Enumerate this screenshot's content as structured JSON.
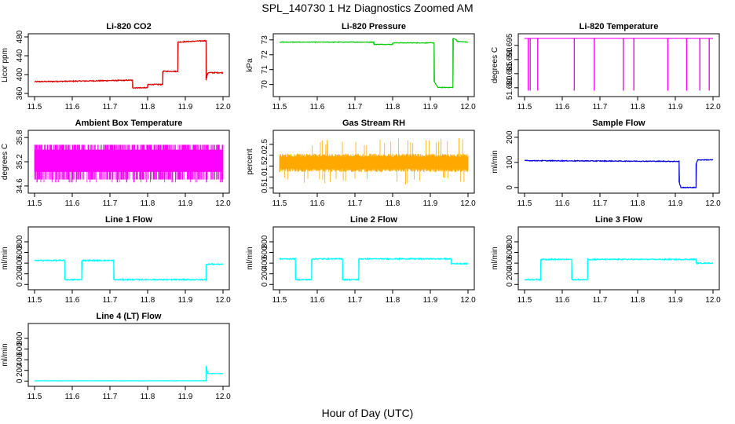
{
  "title": "SPL_140730  1 Hz Diagnostics Zoomed AM",
  "xlabel": "Hour of Day (UTC)",
  "colors": {
    "red": "#dd0000",
    "green": "#00cc00",
    "magenta": "#ff00ff",
    "orange": "#ffaa00",
    "blue": "#0000dd",
    "cyan": "#00ffff"
  },
  "chart_data": [
    {
      "type": "line",
      "title": "Li-820 CO2",
      "ylabel": "Licor ppm",
      "color": "red",
      "xlim": [
        11.5,
        12.0
      ],
      "ylim": [
        360,
        480
      ],
      "x_ticks": [
        "11.5",
        "11.6",
        "11.7",
        "11.8",
        "11.9",
        "12.0"
      ],
      "y_ticks": [
        {
          "v": 360,
          "t": "360"
        },
        {
          "v": 400,
          "t": "400"
        },
        {
          "v": 440,
          "t": "440"
        },
        {
          "v": 480,
          "t": "480"
        }
      ],
      "noise": 1.0,
      "series": [
        {
          "x": [
            11.5,
            11.6,
            11.6,
            11.76,
            11.76,
            11.8,
            11.8,
            11.84,
            11.84,
            11.88,
            11.88,
            11.955,
            11.955,
            11.96,
            11.96,
            12.0
          ],
          "y": [
            385,
            386,
            386,
            388,
            372,
            372,
            379,
            379,
            407,
            407,
            469,
            472,
            388,
            404,
            404,
            404
          ]
        }
      ]
    },
    {
      "type": "line",
      "title": "Li-820 Pressure",
      "ylabel": "kPa",
      "color": "green",
      "xlim": [
        11.5,
        12.0
      ],
      "ylim": [
        69.4,
        73.2
      ],
      "x_ticks": [
        "11.5",
        "11.6",
        "11.7",
        "11.8",
        "11.9",
        "12.0"
      ],
      "y_ticks": [
        {
          "v": 70,
          "t": "70"
        },
        {
          "v": 71,
          "t": "71"
        },
        {
          "v": 72,
          "t": "72"
        },
        {
          "v": 73,
          "t": "73"
        }
      ],
      "noise": 0.02,
      "series": [
        {
          "x": [
            11.5,
            11.75,
            11.75,
            11.8,
            11.8,
            11.91,
            11.91,
            11.92,
            11.92,
            11.96,
            11.96,
            11.97,
            11.97,
            12.0
          ],
          "y": [
            72.85,
            72.85,
            72.7,
            72.7,
            72.8,
            72.8,
            70.2,
            69.8,
            69.8,
            69.8,
            73.1,
            73.0,
            72.9,
            72.85
          ]
        }
      ]
    },
    {
      "type": "line",
      "title": "Li-820 Temperature",
      "ylabel": "degrees C",
      "color": "magenta",
      "xlim": [
        11.5,
        12.0
      ],
      "ylim": [
        51.678,
        51.698
      ],
      "x_ticks": [
        "11.5",
        "11.6",
        "11.7",
        "11.8",
        "11.9",
        "12.0"
      ],
      "y_ticks": [
        {
          "v": 51.68,
          "t": "51.680"
        },
        {
          "v": 51.685,
          "t": "51.685"
        },
        {
          "v": 51.69,
          "t": "51.690"
        },
        {
          "v": 51.695,
          "t": "51.695"
        }
      ],
      "baseline": 51.6975,
      "spike_value": 51.679,
      "spikes": [
        11.51,
        11.515,
        11.535,
        11.632,
        11.685,
        11.762,
        11.79,
        11.88,
        11.93,
        11.965,
        11.99
      ]
    },
    {
      "type": "line",
      "title": "Ambient Box Temperature",
      "ylabel": "degrees C",
      "color": "magenta",
      "xlim": [
        11.5,
        12.0
      ],
      "ylim": [
        34.5,
        35.9
      ],
      "x_ticks": [
        "11.5",
        "11.6",
        "11.7",
        "11.8",
        "11.9",
        "12.0"
      ],
      "y_ticks": [
        {
          "v": 34.6,
          "t": "34.6"
        },
        {
          "v": 35.2,
          "t": "35.2"
        },
        {
          "v": 35.8,
          "t": "35.8"
        }
      ],
      "band": {
        "low": 34.76,
        "high": 35.62,
        "mid_low": 34.95,
        "mid_high": 35.5
      }
    },
    {
      "type": "line",
      "title": "Gas Stream RH",
      "ylabel": "percent",
      "color": "orange",
      "xlim": [
        11.5,
        12.0
      ],
      "ylim": [
        0.4,
        3.0
      ],
      "x_ticks": [
        "11.5",
        "11.6",
        "11.7",
        "11.8",
        "11.9",
        "12.0"
      ],
      "y_ticks": [
        {
          "v": 0.5,
          "t": "0.5"
        },
        {
          "v": 1.0,
          "t": "1.0"
        },
        {
          "v": 1.5,
          "t": "1.5"
        },
        {
          "v": 2.0,
          "t": "2.0"
        },
        {
          "v": 2.5,
          "t": "2.5"
        }
      ],
      "band": {
        "low": 1.3,
        "high": 2.0,
        "spike_low": 0.6,
        "spike_high": 2.8
      }
    },
    {
      "type": "line",
      "title": "Sample Flow",
      "ylabel": "ml/min",
      "color": "blue",
      "xlim": [
        11.5,
        12.0
      ],
      "ylim": [
        -10,
        215
      ],
      "x_ticks": [
        "11.5",
        "11.6",
        "11.7",
        "11.8",
        "11.9",
        "12.0"
      ],
      "y_ticks": [
        {
          "v": 0,
          "t": "0"
        },
        {
          "v": 100,
          "t": "100"
        },
        {
          "v": 200,
          "t": "200"
        }
      ],
      "noise": 1.5,
      "series": [
        {
          "x": [
            11.5,
            11.91,
            11.91,
            11.915,
            11.955,
            11.955,
            11.96,
            12.0
          ],
          "y": [
            107,
            104,
            20,
            0,
            0,
            95,
            110,
            110
          ]
        }
      ]
    },
    {
      "type": "line",
      "title": "Line 1 Flow",
      "ylabel": "ml/min",
      "color": "cyan",
      "xlim": [
        11.5,
        12.0
      ],
      "ylim": [
        -40,
        1020
      ],
      "x_ticks": [
        "11.5",
        "11.6",
        "11.7",
        "11.8",
        "11.9",
        "12.0"
      ],
      "y_ticks": [
        {
          "v": 0,
          "t": "0"
        },
        {
          "v": 200,
          "t": "200"
        },
        {
          "v": 400,
          "t": "400"
        },
        {
          "v": 600,
          "t": "600"
        },
        {
          "v": 800,
          "t": "800"
        }
      ],
      "noise": 10,
      "series": [
        {
          "x": [
            11.5,
            11.58,
            11.58,
            11.625,
            11.625,
            11.71,
            11.71,
            11.955,
            11.955,
            12.0
          ],
          "y": [
            450,
            450,
            90,
            90,
            450,
            450,
            90,
            90,
            380,
            380
          ]
        }
      ]
    },
    {
      "type": "line",
      "title": "Line 2 Flow",
      "ylabel": "ml/min",
      "color": "cyan",
      "xlim": [
        11.5,
        12.0
      ],
      "ylim": [
        -40,
        1020
      ],
      "x_ticks": [
        "11.5",
        "11.6",
        "11.7",
        "11.8",
        "11.9",
        "12.0"
      ],
      "y_ticks": [
        {
          "v": 0,
          "t": "0"
        },
        {
          "v": 200,
          "t": "200"
        },
        {
          "v": 400,
          "t": "400"
        },
        {
          "v": 600,
          "t": "600"
        },
        {
          "v": 800,
          "t": "800"
        }
      ],
      "noise": 10,
      "series": [
        {
          "x": [
            11.5,
            11.542,
            11.542,
            11.585,
            11.585,
            11.667,
            11.667,
            11.71,
            11.71,
            11.955,
            11.955,
            12.0
          ],
          "y": [
            480,
            480,
            90,
            90,
            480,
            480,
            90,
            90,
            480,
            480,
            390,
            390
          ]
        }
      ]
    },
    {
      "type": "line",
      "title": "Line 3 Flow",
      "ylabel": "ml/min",
      "color": "cyan",
      "xlim": [
        11.5,
        12.0
      ],
      "ylim": [
        -40,
        1020
      ],
      "x_ticks": [
        "11.5",
        "11.6",
        "11.7",
        "11.8",
        "11.9",
        "12.0"
      ],
      "y_ticks": [
        {
          "v": 0,
          "t": "0"
        },
        {
          "v": 200,
          "t": "200"
        },
        {
          "v": 400,
          "t": "400"
        },
        {
          "v": 600,
          "t": "600"
        },
        {
          "v": 800,
          "t": "800"
        }
      ],
      "noise": 10,
      "series": [
        {
          "x": [
            11.5,
            11.543,
            11.543,
            11.625,
            11.625,
            11.667,
            11.667,
            11.955,
            11.955,
            12.0
          ],
          "y": [
            90,
            90,
            470,
            470,
            90,
            90,
            470,
            470,
            400,
            400
          ]
        }
      ]
    },
    {
      "type": "line",
      "title": "Line 4 (LT) Flow",
      "ylabel": "ml/min",
      "color": "cyan",
      "xlim": [
        11.5,
        12.0
      ],
      "ylim": [
        -40,
        1020
      ],
      "x_ticks": [
        "11.5",
        "11.6",
        "11.7",
        "11.8",
        "11.9",
        "12.0"
      ],
      "y_ticks": [
        {
          "v": 0,
          "t": "0"
        },
        {
          "v": 200,
          "t": "200"
        },
        {
          "v": 400,
          "t": "400"
        },
        {
          "v": 600,
          "t": "600"
        },
        {
          "v": 800,
          "t": "800"
        }
      ],
      "noise": 3,
      "series": [
        {
          "x": [
            11.5,
            11.955,
            11.955,
            11.96,
            11.96,
            12.0
          ],
          "y": [
            5,
            5,
            290,
            140,
            140,
            140
          ]
        }
      ]
    }
  ]
}
